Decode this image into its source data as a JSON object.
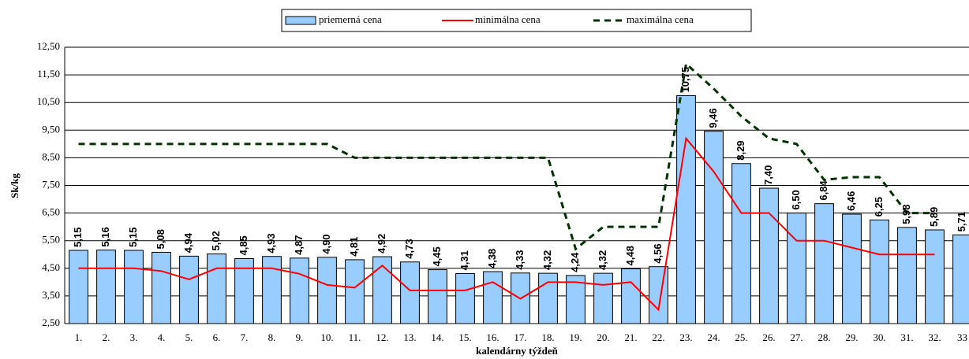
{
  "chart_data": {
    "type": "bar",
    "categories": [
      "1.",
      "2.",
      "3.",
      "4.",
      "5.",
      "6.",
      "7.",
      "8.",
      "9.",
      "10.",
      "11.",
      "12.",
      "13.",
      "14.",
      "15.",
      "16.",
      "17.",
      "18.",
      "19.",
      "20.",
      "21.",
      "22.",
      "23.",
      "24.",
      "25.",
      "26.",
      "27.",
      "28.",
      "29.",
      "30.",
      "31.",
      "32.",
      "33"
    ],
    "series": [
      {
        "name": "priemerná cena",
        "type": "bar",
        "color": "#99ccff",
        "values": [
          5.15,
          5.16,
          5.15,
          5.08,
          4.94,
          5.02,
          4.85,
          4.93,
          4.87,
          4.9,
          4.81,
          4.92,
          4.73,
          4.45,
          4.31,
          4.38,
          4.33,
          4.32,
          4.24,
          4.32,
          4.48,
          4.56,
          10.75,
          9.46,
          8.29,
          7.4,
          6.5,
          6.84,
          6.46,
          6.25,
          5.98,
          5.89,
          5.71
        ],
        "value_labels": [
          "5,15",
          "5,16",
          "5,15",
          "5,08",
          "4,94",
          "5,02",
          "4,85",
          "4,93",
          "4,87",
          "4,90",
          "4,81",
          "4,92",
          "4,73",
          "4,45",
          "4,31",
          "4,38",
          "4,33",
          "4,32",
          "4,24",
          "4,32",
          "4,48",
          "4,56",
          "10,75",
          "9,46",
          "8,29",
          "7,40",
          "6,50",
          "6,84",
          "6,46",
          "6,25",
          "5,98",
          "5,89",
          "5,71"
        ]
      },
      {
        "name": "minimálna cena",
        "type": "line",
        "color": "#ff0000",
        "values": [
          4.5,
          4.5,
          4.5,
          4.4,
          4.1,
          4.5,
          4.5,
          4.5,
          4.3,
          3.9,
          3.8,
          4.6,
          3.7,
          3.7,
          3.7,
          4.0,
          3.4,
          4.0,
          4.0,
          3.9,
          4.0,
          3.0,
          9.2,
          8.0,
          6.5,
          6.5,
          5.5,
          5.5,
          5.25,
          5.0,
          5.0,
          5.0,
          null
        ]
      },
      {
        "name": "maximálna cena",
        "type": "dashed-line",
        "color": "#003300",
        "values": [
          9,
          9,
          9,
          9,
          9,
          9,
          9,
          9,
          9,
          9,
          8.5,
          8.5,
          8.5,
          8.5,
          8.5,
          8.5,
          8.5,
          8.5,
          5.2,
          6.0,
          6.0,
          6.0,
          11.9,
          11.0,
          10.0,
          9.2,
          9.0,
          7.7,
          7.8,
          7.8,
          6.5,
          6.5,
          null
        ]
      }
    ],
    "xlabel": "kalendárny týždeň",
    "ylabel": "Sk/kg",
    "ylim": [
      2.5,
      12.5
    ],
    "yticks": [
      {
        "value": 2.5,
        "label": "2,50"
      },
      {
        "value": 3.5,
        "label": "3,50"
      },
      {
        "value": 4.5,
        "label": "4,50"
      },
      {
        "value": 5.5,
        "label": "5,50"
      },
      {
        "value": 6.5,
        "label": "6,50"
      },
      {
        "value": 7.5,
        "label": "7,50"
      },
      {
        "value": 8.5,
        "label": "8,50"
      },
      {
        "value": 9.5,
        "label": "9,50"
      },
      {
        "value": 10.5,
        "label": "10,50"
      },
      {
        "value": 11.5,
        "label": "11,50"
      },
      {
        "value": 12.5,
        "label": "12,50"
      }
    ],
    "grid": true,
    "legend": "top"
  }
}
